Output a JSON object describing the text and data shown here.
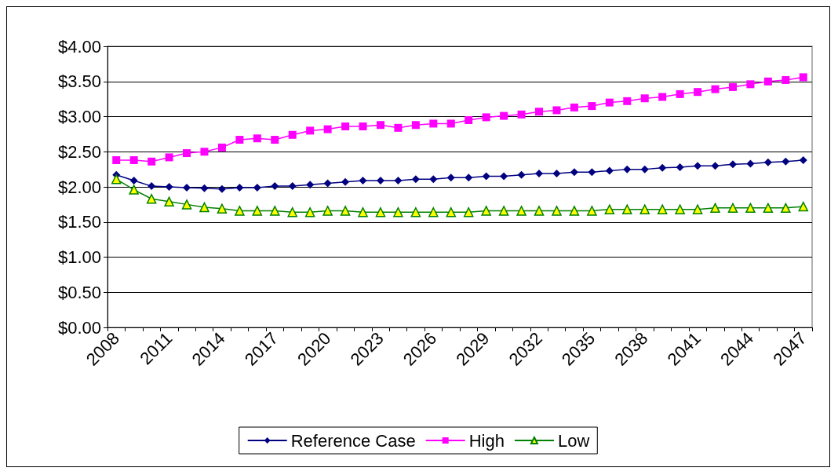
{
  "chart_data": {
    "type": "line",
    "categories": [
      "2008",
      null,
      null,
      "2011",
      null,
      null,
      "2014",
      null,
      null,
      "2017",
      null,
      null,
      "2020",
      null,
      null,
      "2023",
      null,
      null,
      "2026",
      null,
      null,
      "2029",
      null,
      null,
      "2032",
      null,
      null,
      "2035",
      null,
      null,
      "2038",
      null,
      null,
      "2041",
      null,
      null,
      "2044",
      null,
      null,
      "2047"
    ],
    "series": [
      {
        "name": "Reference Case",
        "color": "#000080",
        "marker": "diamond",
        "values": [
          2.17,
          2.09,
          2.01,
          2.0,
          1.99,
          1.98,
          1.97,
          1.99,
          1.99,
          2.01,
          2.01,
          2.03,
          2.05,
          2.07,
          2.09,
          2.09,
          2.09,
          2.11,
          2.11,
          2.13,
          2.13,
          2.15,
          2.15,
          2.17,
          2.19,
          2.19,
          2.21,
          2.21,
          2.23,
          2.25,
          2.25,
          2.27,
          2.28,
          2.3,
          2.3,
          2.32,
          2.33,
          2.35,
          2.36,
          2.38
        ]
      },
      {
        "name": "High",
        "color": "#ff00ff",
        "marker": "square",
        "values": [
          2.38,
          2.38,
          2.36,
          2.42,
          2.48,
          2.5,
          2.56,
          2.67,
          2.69,
          2.67,
          2.74,
          2.8,
          2.82,
          2.86,
          2.86,
          2.88,
          2.84,
          2.88,
          2.9,
          2.9,
          2.95,
          2.99,
          3.01,
          3.03,
          3.07,
          3.09,
          3.13,
          3.15,
          3.2,
          3.22,
          3.26,
          3.28,
          3.32,
          3.35,
          3.39,
          3.42,
          3.46,
          3.5,
          3.52,
          3.56
        ]
      },
      {
        "name": "Low",
        "color": "#008000",
        "marker": "triangle",
        "values": [
          2.11,
          1.96,
          1.83,
          1.79,
          1.75,
          1.71,
          1.69,
          1.66,
          1.66,
          1.66,
          1.64,
          1.64,
          1.66,
          1.66,
          1.64,
          1.64,
          1.64,
          1.64,
          1.64,
          1.64,
          1.64,
          1.66,
          1.66,
          1.66,
          1.66,
          1.66,
          1.66,
          1.66,
          1.68,
          1.68,
          1.68,
          1.68,
          1.68,
          1.68,
          1.7,
          1.7,
          1.7,
          1.7,
          1.7,
          1.72
        ]
      }
    ],
    "ylim": [
      0,
      4
    ],
    "yticks": [
      {
        "value": 0,
        "label": "$0.00"
      },
      {
        "value": 0.5,
        "label": "$0.50"
      },
      {
        "value": 1,
        "label": "$1.00"
      },
      {
        "value": 1.5,
        "label": "$1.50"
      },
      {
        "value": 2,
        "label": "$2.00"
      },
      {
        "value": 2.5,
        "label": "$2.50"
      },
      {
        "value": 3,
        "label": "$3.00"
      },
      {
        "value": 3.5,
        "label": "$3.50"
      },
      {
        "value": 4,
        "label": "$4.00"
      }
    ],
    "grid": "y",
    "legend": "bottom",
    "line_style": "solid"
  }
}
